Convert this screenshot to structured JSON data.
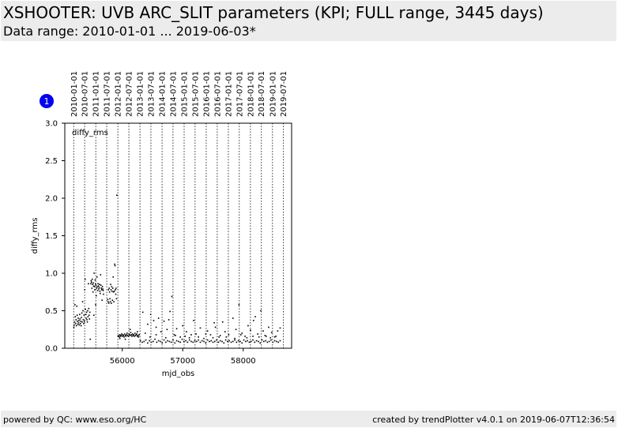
{
  "header": {
    "title": "XSHOOTER: UVB ARC_SLIT parameters (KPI; FULL range, 3445 days)",
    "subtitle": "Data range: 2010-01-01 ... 2019-06-03*"
  },
  "footer": {
    "left": "powered by QC: www.eso.org/HC",
    "right": "created by trendPlotter v4.0.1 on 2019-06-07T12:36:54"
  },
  "badge": {
    "label": "1",
    "color": "#0000ee"
  },
  "chart_data": {
    "type": "scatter",
    "title": "",
    "xlabel": "mjd_obs",
    "ylabel": "diffy_rms",
    "series_label": "diffy_rms",
    "xlim": [
      55050,
      58800
    ],
    "ylim": [
      0,
      3.0
    ],
    "x_ticks": [
      56000,
      57000,
      58000
    ],
    "y_ticks": [
      0.0,
      0.5,
      1.0,
      1.5,
      2.0,
      2.5,
      3.0
    ],
    "date_markers": [
      {
        "label": "2010-01-01",
        "mjd": 55197
      },
      {
        "label": "2010-07-01",
        "mjd": 55378
      },
      {
        "label": "2011-01-01",
        "mjd": 55562
      },
      {
        "label": "2011-07-01",
        "mjd": 55743
      },
      {
        "label": "2012-01-01",
        "mjd": 55927
      },
      {
        "label": "2012-07-01",
        "mjd": 56109
      },
      {
        "label": "2013-01-01",
        "mjd": 56293
      },
      {
        "label": "2013-07-01",
        "mjd": 56474
      },
      {
        "label": "2014-01-01",
        "mjd": 56658
      },
      {
        "label": "2014-07-01",
        "mjd": 56839
      },
      {
        "label": "2015-01-01",
        "mjd": 57023
      },
      {
        "label": "2015-07-01",
        "mjd": 57204
      },
      {
        "label": "2016-01-01",
        "mjd": 57388
      },
      {
        "label": "2016-07-01",
        "mjd": 57570
      },
      {
        "label": "2017-01-01",
        "mjd": 57754
      },
      {
        "label": "2017-07-01",
        "mjd": 57935
      },
      {
        "label": "2018-01-01",
        "mjd": 58119
      },
      {
        "label": "2018-07-01",
        "mjd": 58300
      },
      {
        "label": "2019-01-01",
        "mjd": 58484
      },
      {
        "label": "2019-07-01",
        "mjd": 58665
      }
    ],
    "grid": false,
    "marker_color": "#000000",
    "points": [
      [
        55200,
        0.28
      ],
      [
        55205,
        0.31
      ],
      [
        55212,
        0.35
      ],
      [
        55218,
        0.58
      ],
      [
        55224,
        0.42
      ],
      [
        55230,
        0.33
      ],
      [
        55236,
        0.38
      ],
      [
        55242,
        0.3
      ],
      [
        55248,
        0.56
      ],
      [
        55254,
        0.44
      ],
      [
        55260,
        0.36
      ],
      [
        55266,
        0.32
      ],
      [
        55272,
        0.4
      ],
      [
        55278,
        0.34
      ],
      [
        55284,
        0.37
      ],
      [
        55290,
        0.31
      ],
      [
        55296,
        0.45
      ],
      [
        55302,
        0.39
      ],
      [
        55308,
        0.33
      ],
      [
        55314,
        0.36
      ],
      [
        55320,
        0.3
      ],
      [
        55326,
        0.41
      ],
      [
        55332,
        0.47
      ],
      [
        55338,
        0.35
      ],
      [
        55344,
        0.62
      ],
      [
        55350,
        0.5
      ],
      [
        55356,
        0.38
      ],
      [
        55362,
        0.33
      ],
      [
        55368,
        0.44
      ],
      [
        55374,
        0.36
      ],
      [
        55380,
        0.78
      ],
      [
        55386,
        0.92
      ],
      [
        55392,
        0.52
      ],
      [
        55398,
        0.45
      ],
      [
        55404,
        0.4
      ],
      [
        55410,
        0.48
      ],
      [
        55416,
        0.38
      ],
      [
        55422,
        0.35
      ],
      [
        55428,
        0.5
      ],
      [
        55434,
        0.42
      ],
      [
        55440,
        0.86
      ],
      [
        55446,
        0.53
      ],
      [
        55452,
        0.44
      ],
      [
        55458,
        0.39
      ],
      [
        55464,
        0.48
      ],
      [
        55470,
        0.12
      ],
      [
        55480,
        0.86
      ],
      [
        55486,
        0.9
      ],
      [
        55492,
        0.88
      ],
      [
        55498,
        0.8
      ],
      [
        55504,
        0.92
      ],
      [
        55510,
        0.85
      ],
      [
        55516,
        0.75
      ],
      [
        55522,
        0.87
      ],
      [
        55528,
        0.83
      ],
      [
        55534,
        1.0
      ],
      [
        55540,
        0.82
      ],
      [
        55546,
        0.78
      ],
      [
        55552,
        0.91
      ],
      [
        55558,
        0.86
      ],
      [
        55564,
        0.84
      ],
      [
        55570,
        0.7
      ],
      [
        55576,
        0.8
      ],
      [
        55582,
        0.95
      ],
      [
        55588,
        0.82
      ],
      [
        55594,
        0.77
      ],
      [
        55600,
        0.86
      ],
      [
        55606,
        0.83
      ],
      [
        55612,
        0.79
      ],
      [
        55618,
        0.81
      ],
      [
        55624,
        0.85
      ],
      [
        55630,
        0.76
      ],
      [
        55636,
        0.73
      ],
      [
        55642,
        0.98
      ],
      [
        55648,
        0.84
      ],
      [
        55654,
        0.8
      ],
      [
        55660,
        0.78
      ],
      [
        55666,
        0.64
      ],
      [
        55672,
        0.82
      ],
      [
        55678,
        0.79
      ],
      [
        55684,
        0.77
      ],
      [
        55690,
        0.72
      ],
      [
        55530,
        0.44
      ],
      [
        55560,
        0.58
      ],
      [
        55760,
        0.65
      ],
      [
        55766,
        0.62
      ],
      [
        55772,
        0.78
      ],
      [
        55778,
        0.6
      ],
      [
        55784,
        0.8
      ],
      [
        55790,
        0.75
      ],
      [
        55796,
        0.66
      ],
      [
        55802,
        0.62
      ],
      [
        55808,
        0.85
      ],
      [
        55814,
        0.78
      ],
      [
        55820,
        0.6
      ],
      [
        55826,
        0.82
      ],
      [
        55832,
        0.76
      ],
      [
        55838,
        0.64
      ],
      [
        55844,
        0.8
      ],
      [
        55850,
        0.95
      ],
      [
        55856,
        0.75
      ],
      [
        55862,
        0.62
      ],
      [
        55868,
        0.76
      ],
      [
        55874,
        1.12
      ],
      [
        55880,
        1.1
      ],
      [
        55886,
        0.78
      ],
      [
        55892,
        0.72
      ],
      [
        55898,
        0.8
      ],
      [
        55904,
        0.66
      ],
      [
        55910,
        2.04
      ],
      [
        55930,
        0.16
      ],
      [
        55940,
        0.17
      ],
      [
        55950,
        0.15
      ],
      [
        55960,
        0.18
      ],
      [
        55970,
        0.16
      ],
      [
        55980,
        0.17
      ],
      [
        55990,
        0.19
      ],
      [
        56000,
        0.16
      ],
      [
        56010,
        0.18
      ],
      [
        56020,
        0.17
      ],
      [
        56030,
        0.15
      ],
      [
        56040,
        0.19
      ],
      [
        56050,
        0.17
      ],
      [
        56060,
        0.16
      ],
      [
        56070,
        0.18
      ],
      [
        56080,
        0.2
      ],
      [
        56090,
        0.17
      ],
      [
        56100,
        0.16
      ],
      [
        56110,
        0.19
      ],
      [
        56120,
        0.18
      ],
      [
        56130,
        0.17
      ],
      [
        56140,
        0.21
      ],
      [
        56150,
        0.18
      ],
      [
        56160,
        0.16
      ],
      [
        56170,
        0.19
      ],
      [
        56180,
        0.17
      ],
      [
        56190,
        0.18
      ],
      [
        56200,
        0.16
      ],
      [
        56210,
        0.2
      ],
      [
        56220,
        0.17
      ],
      [
        56230,
        0.18
      ],
      [
        56240,
        0.19
      ],
      [
        56250,
        0.16
      ],
      [
        56260,
        0.17
      ],
      [
        56270,
        0.15
      ],
      [
        56280,
        0.18
      ],
      [
        56130,
        0.25
      ],
      [
        56250,
        0.22
      ],
      [
        55960,
        0.13
      ],
      [
        56050,
        0.12
      ],
      [
        56300,
        0.1
      ],
      [
        56330,
        0.08
      ],
      [
        56360,
        0.09
      ],
      [
        56390,
        0.11
      ],
      [
        56420,
        0.07
      ],
      [
        56450,
        0.1
      ],
      [
        56480,
        0.08
      ],
      [
        56510,
        0.09
      ],
      [
        56540,
        0.12
      ],
      [
        56570,
        0.08
      ],
      [
        56600,
        0.1
      ],
      [
        56630,
        0.09
      ],
      [
        56660,
        0.07
      ],
      [
        56690,
        0.11
      ],
      [
        56720,
        0.08
      ],
      [
        56750,
        0.1
      ],
      [
        56780,
        0.09
      ],
      [
        56810,
        0.08
      ],
      [
        56840,
        0.11
      ],
      [
        56870,
        0.07
      ],
      [
        56900,
        0.1
      ],
      [
        56930,
        0.09
      ],
      [
        56960,
        0.08
      ],
      [
        56990,
        0.12
      ],
      [
        57020,
        0.09
      ],
      [
        57050,
        0.1
      ],
      [
        57080,
        0.08
      ],
      [
        57110,
        0.11
      ],
      [
        57140,
        0.09
      ],
      [
        57170,
        0.08
      ],
      [
        57200,
        0.1
      ],
      [
        57230,
        0.09
      ],
      [
        57260,
        0.11
      ],
      [
        57290,
        0.08
      ],
      [
        57320,
        0.1
      ],
      [
        57350,
        0.09
      ],
      [
        57380,
        0.07
      ],
      [
        57410,
        0.11
      ],
      [
        57440,
        0.09
      ],
      [
        57470,
        0.1
      ],
      [
        57500,
        0.08
      ],
      [
        57530,
        0.09
      ],
      [
        57560,
        0.11
      ],
      [
        57590,
        0.08
      ],
      [
        57620,
        0.1
      ],
      [
        57650,
        0.09
      ],
      [
        57680,
        0.07
      ],
      [
        57710,
        0.11
      ],
      [
        57740,
        0.09
      ],
      [
        57770,
        0.1
      ],
      [
        57800,
        0.08
      ],
      [
        57830,
        0.09
      ],
      [
        57860,
        0.11
      ],
      [
        57890,
        0.08
      ],
      [
        57920,
        0.1
      ],
      [
        57950,
        0.09
      ],
      [
        57980,
        0.07
      ],
      [
        58010,
        0.11
      ],
      [
        58040,
        0.09
      ],
      [
        58070,
        0.1
      ],
      [
        58100,
        0.08
      ],
      [
        58130,
        0.09
      ],
      [
        58160,
        0.11
      ],
      [
        58190,
        0.08
      ],
      [
        58220,
        0.1
      ],
      [
        58250,
        0.09
      ],
      [
        58280,
        0.07
      ],
      [
        58310,
        0.11
      ],
      [
        58340,
        0.09
      ],
      [
        58370,
        0.1
      ],
      [
        58400,
        0.08
      ],
      [
        58430,
        0.09
      ],
      [
        58460,
        0.11
      ],
      [
        58490,
        0.08
      ],
      [
        58520,
        0.1
      ],
      [
        58550,
        0.09
      ],
      [
        58580,
        0.08
      ],
      [
        58610,
        0.1
      ],
      [
        56340,
        0.48
      ],
      [
        56420,
        0.32
      ],
      [
        56470,
        0.45
      ],
      [
        56520,
        0.37
      ],
      [
        56560,
        0.28
      ],
      [
        56600,
        0.4
      ],
      [
        56640,
        0.22
      ],
      [
        56690,
        0.36
      ],
      [
        56740,
        0.25
      ],
      [
        56770,
        0.38
      ],
      [
        56790,
        0.49
      ],
      [
        56820,
        0.69
      ],
      [
        56860,
        0.18
      ],
      [
        56900,
        0.26
      ],
      [
        56960,
        0.15
      ],
      [
        57000,
        0.3
      ],
      [
        57060,
        0.22
      ],
      [
        57110,
        0.14
      ],
      [
        57180,
        0.37
      ],
      [
        57220,
        0.19
      ],
      [
        57290,
        0.27
      ],
      [
        57350,
        0.13
      ],
      [
        57410,
        0.23
      ],
      [
        57460,
        0.18
      ],
      [
        57520,
        0.34
      ],
      [
        57540,
        0.28
      ],
      [
        57600,
        0.15
      ],
      [
        57660,
        0.35
      ],
      [
        57700,
        0.22
      ],
      [
        57760,
        0.18
      ],
      [
        57830,
        0.4
      ],
      [
        57880,
        0.25
      ],
      [
        57930,
        0.58
      ],
      [
        57980,
        0.2
      ],
      [
        58030,
        0.16
      ],
      [
        58080,
        0.3
      ],
      [
        58120,
        0.24
      ],
      [
        58170,
        0.37
      ],
      [
        58200,
        0.42
      ],
      [
        58240,
        0.19
      ],
      [
        58290,
        0.5
      ],
      [
        58330,
        0.23
      ],
      [
        58380,
        0.16
      ],
      [
        58420,
        0.28
      ],
      [
        58470,
        0.21
      ],
      [
        58520,
        0.15
      ],
      [
        58570,
        0.23
      ],
      [
        58610,
        0.27
      ],
      [
        56380,
        0.2
      ],
      [
        56460,
        0.15
      ],
      [
        56560,
        0.18
      ],
      [
        56720,
        0.14
      ],
      [
        56880,
        0.17
      ],
      [
        57040,
        0.16
      ],
      [
        57140,
        0.18
      ],
      [
        57260,
        0.15
      ],
      [
        57380,
        0.19
      ],
      [
        57500,
        0.14
      ],
      [
        57620,
        0.17
      ],
      [
        57720,
        0.15
      ],
      [
        57860,
        0.13
      ],
      [
        57960,
        0.18
      ],
      [
        58060,
        0.14
      ],
      [
        58160,
        0.16
      ],
      [
        58260,
        0.15
      ],
      [
        58360,
        0.17
      ],
      [
        58450,
        0.14
      ],
      [
        58540,
        0.16
      ]
    ]
  }
}
